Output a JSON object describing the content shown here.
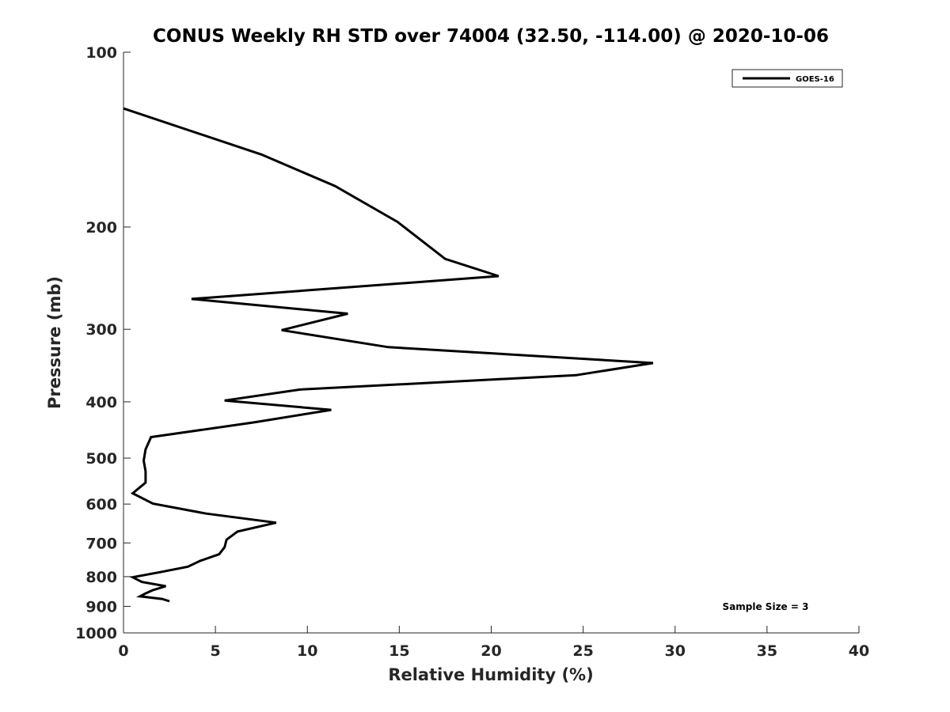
{
  "chart_data": {
    "type": "line",
    "title": "CONUS Weekly RH STD over 74004 (32.50, -114.00) @ 2020-10-06",
    "xlabel": "Relative Humidity (%)",
    "ylabel": "Pressure (mb)",
    "xlim": [
      0,
      40
    ],
    "ylim": [
      100,
      1000
    ],
    "y_scale": "log",
    "y_reversed": true,
    "x_ticks": [
      0,
      5,
      10,
      15,
      20,
      25,
      30,
      35,
      40
    ],
    "y_ticks": [
      100,
      200,
      300,
      400,
      500,
      600,
      700,
      800,
      900,
      1000
    ],
    "grid": false,
    "legend": {
      "placement": "top-right",
      "entries": [
        "GOES-16"
      ]
    },
    "annotation": "Sample Size = 3",
    "series": [
      {
        "name": "GOES-16",
        "color": "#000000",
        "points": [
          [
            0,
            125
          ],
          [
            7.5,
            150
          ],
          [
            11.5,
            170
          ],
          [
            14.9,
            196
          ],
          [
            17.5,
            227
          ],
          [
            20.4,
            243
          ],
          [
            3.7,
            266
          ],
          [
            12.2,
            282
          ],
          [
            8.6,
            301
          ],
          [
            14.4,
            322
          ],
          [
            28.8,
            343
          ],
          [
            24.6,
            360
          ],
          [
            9.6,
            381
          ],
          [
            5.5,
            398
          ],
          [
            11.3,
            413
          ],
          [
            7.1,
            434
          ],
          [
            1.5,
            460
          ],
          [
            1.2,
            483
          ],
          [
            1.1,
            505
          ],
          [
            1.2,
            527
          ],
          [
            1.2,
            551
          ],
          [
            0.5,
            575
          ],
          [
            1.6,
            599
          ],
          [
            4.5,
            623
          ],
          [
            8.3,
            646
          ],
          [
            6.2,
            669
          ],
          [
            5.6,
            691
          ],
          [
            5.5,
            712
          ],
          [
            5.2,
            732
          ],
          [
            4.2,
            751
          ],
          [
            3.5,
            769
          ],
          [
            2.0,
            786
          ],
          [
            0.5,
            802
          ],
          [
            1.0,
            817
          ],
          [
            2.3,
            831
          ],
          [
            1.6,
            844
          ],
          [
            1.2,
            855
          ],
          [
            0.9,
            865
          ],
          [
            2.1,
            874
          ],
          [
            2.5,
            882
          ]
        ]
      }
    ]
  }
}
